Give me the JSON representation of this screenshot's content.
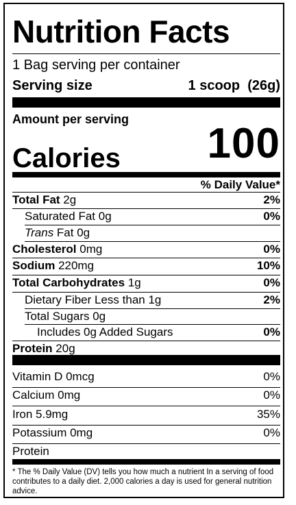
{
  "title": "Nutrition Facts",
  "servings_per_container": "1 Bag serving per container",
  "serving_size": {
    "label": "Serving size",
    "value": "1 scoop  (26g)"
  },
  "amount_per_serving": "Amount per serving",
  "calories": {
    "label": "Calories",
    "value": "100"
  },
  "dv_header": "% Daily Value*",
  "nutrients": [
    {
      "name": "Total Fat",
      "amount": "2g",
      "dv": "2%"
    },
    {
      "name": "Saturated Fat",
      "amount": "0g",
      "dv": "0%"
    },
    {
      "name": "Trans",
      "amount": "Fat 0g",
      "dv": ""
    },
    {
      "name": "Cholesterol",
      "amount": "0mg",
      "dv": "0%"
    },
    {
      "name": "Sodium",
      "amount": "220mg",
      "dv": "10%"
    },
    {
      "name": "Total Carbohydrates",
      "amount": "1g",
      "dv": "0%"
    },
    {
      "name": "Dietary Fiber Less than",
      "amount": "1g",
      "dv": "2%"
    },
    {
      "name": "Total Sugars",
      "amount": "0g",
      "dv": ""
    },
    {
      "name": "Includes 0g Added Sugars",
      "amount": "",
      "dv": "0%"
    },
    {
      "name": "Protein",
      "amount": "20g",
      "dv": ""
    }
  ],
  "vitamins": [
    {
      "name": "Vitamin D 0mcg",
      "dv": "0%"
    },
    {
      "name": "Calcium 0mg",
      "dv": "0%"
    },
    {
      "name": "Iron 5.9mg",
      "dv": "35%"
    },
    {
      "name": "Potassium 0mg",
      "dv": "0%"
    },
    {
      "name": "Protein",
      "dv": ""
    }
  ],
  "footnote": "* The % Daily Value (DV) tells you how much a nutrient In a serving of food contributes to a daily diet. 2,000 calories a day is used for general nutrition advice."
}
